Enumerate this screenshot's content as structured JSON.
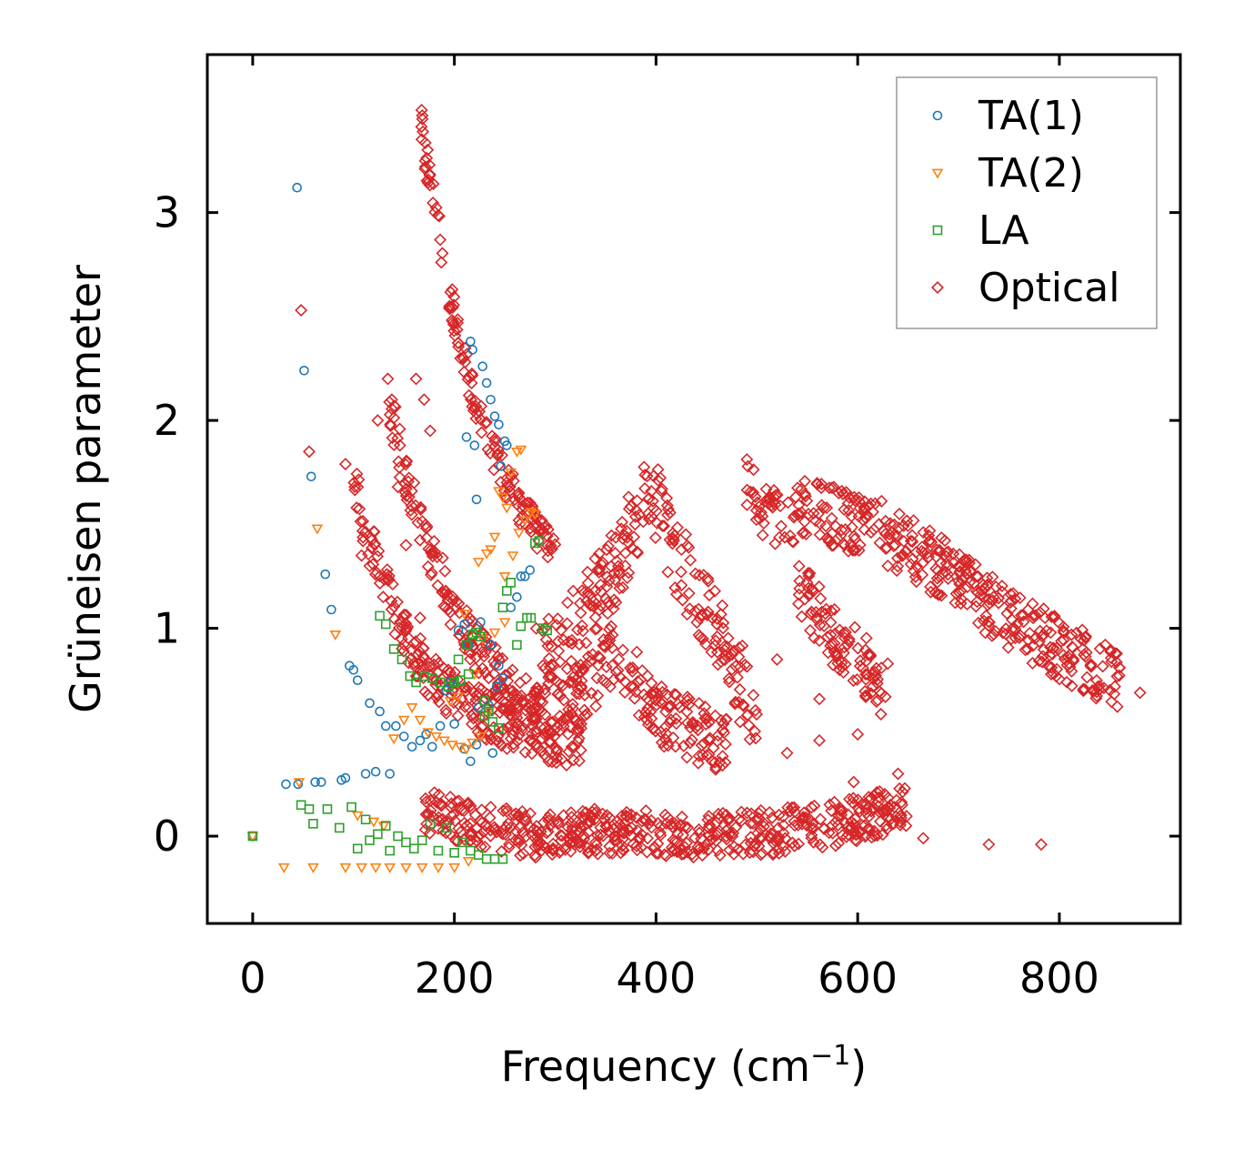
{
  "chart_data": {
    "type": "scatter",
    "title": "",
    "xlabel": "Frequency (cm",
    "xlabel_sup": "−1",
    "xlabel_close": ")",
    "ylabel": "Grüneisen parameter",
    "xlim": [
      -45,
      920
    ],
    "ylim": [
      -0.42,
      3.76
    ],
    "xticks": [
      0,
      200,
      400,
      600,
      800
    ],
    "yticks": [
      0,
      1,
      2,
      3
    ],
    "legend_position": "top-right",
    "series": [
      {
        "name": "TA(1)",
        "marker": "circle",
        "color": "#1f77b4",
        "points": [
          [
            0,
            0
          ],
          [
            33,
            0.25
          ],
          [
            45,
            0.25
          ],
          [
            44,
            3.12
          ],
          [
            51,
            2.24
          ],
          [
            58,
            1.73
          ],
          [
            62,
            0.26
          ],
          [
            68,
            0.26
          ],
          [
            72,
            1.26
          ],
          [
            78,
            1.09
          ],
          [
            88,
            0.27
          ],
          [
            92,
            0.28
          ],
          [
            96,
            0.82
          ],
          [
            100,
            0.8
          ],
          [
            104,
            0.75
          ],
          [
            112,
            0.3
          ],
          [
            116,
            0.64
          ],
          [
            122,
            0.31
          ],
          [
            126,
            0.6
          ],
          [
            132,
            0.53
          ],
          [
            136,
            0.3
          ],
          [
            142,
            0.53
          ],
          [
            150,
            0.48
          ],
          [
            158,
            0.43
          ],
          [
            166,
            0.46
          ],
          [
            172,
            0.49
          ],
          [
            178,
            0.43
          ],
          [
            186,
            0.53
          ],
          [
            192,
            0.7
          ],
          [
            196,
            0.74
          ],
          [
            200,
            0.54
          ],
          [
            204,
            0.99
          ],
          [
            210,
            1.02
          ],
          [
            212,
            1.92
          ],
          [
            216,
            2.38
          ],
          [
            218,
            2.34
          ],
          [
            220,
            1.88
          ],
          [
            222,
            1.62
          ],
          [
            224,
            0.62
          ],
          [
            228,
            2.26
          ],
          [
            232,
            2.18
          ],
          [
            234,
            0.63
          ],
          [
            236,
            2.1
          ],
          [
            238,
            0.4
          ],
          [
            240,
            2.02
          ],
          [
            242,
            0.72
          ],
          [
            244,
            1.98
          ],
          [
            246,
            1.78
          ],
          [
            248,
            0.76
          ],
          [
            250,
            1.9
          ],
          [
            252,
            1.88
          ],
          [
            256,
            1.1
          ],
          [
            262,
            1.15
          ],
          [
            266,
            1.25
          ],
          [
            270,
            1.25
          ],
          [
            275,
            1.28
          ],
          [
            214,
            0.92
          ],
          [
            226,
            1.03
          ],
          [
            236,
            0.92
          ],
          [
            244,
            0.82
          ],
          [
            210,
            0.42
          ],
          [
            216,
            0.36
          ],
          [
            222,
            0.44
          ]
        ]
      },
      {
        "name": "TA(2)",
        "marker": "triangle-down",
        "color": "#ff7f0e",
        "points": [
          [
            0,
            0
          ],
          [
            31,
            -0.15
          ],
          [
            46,
            0.26
          ],
          [
            60,
            -0.15
          ],
          [
            64,
            1.48
          ],
          [
            82,
            0.97
          ],
          [
            92,
            -0.15
          ],
          [
            108,
            -0.15
          ],
          [
            122,
            -0.15
          ],
          [
            136,
            -0.15
          ],
          [
            152,
            -0.15
          ],
          [
            168,
            -0.15
          ],
          [
            184,
            -0.15
          ],
          [
            200,
            -0.15
          ],
          [
            214,
            -0.12
          ],
          [
            140,
            0.47
          ],
          [
            150,
            0.56
          ],
          [
            158,
            0.62
          ],
          [
            166,
            0.56
          ],
          [
            174,
            0.5
          ],
          [
            182,
            0.48
          ],
          [
            190,
            0.46
          ],
          [
            198,
            0.44
          ],
          [
            206,
            0.43
          ],
          [
            212,
            0.42
          ],
          [
            218,
            0.45
          ],
          [
            226,
            0.48
          ],
          [
            234,
            0.6
          ],
          [
            240,
            1.44
          ],
          [
            244,
            1.66
          ],
          [
            248,
            1.63
          ],
          [
            252,
            1.58
          ],
          [
            256,
            1.75
          ],
          [
            262,
            1.85
          ],
          [
            266,
            1.86
          ],
          [
            270,
            1.52
          ],
          [
            276,
            1.56
          ],
          [
            280,
            1.55
          ],
          [
            210,
            1.07
          ],
          [
            224,
            1.32
          ],
          [
            232,
            1.36
          ],
          [
            236,
            1.38
          ],
          [
            250,
            1.25
          ],
          [
            258,
            1.35
          ],
          [
            264,
            1.46
          ],
          [
            196,
            0.65
          ],
          [
            204,
            0.67
          ],
          [
            220,
            0.78
          ],
          [
            228,
            0.95
          ],
          [
            240,
            0.98
          ],
          [
            250,
            1.03
          ],
          [
            120,
            0.07
          ],
          [
            130,
            0.05
          ],
          [
            104,
            0.1
          ]
        ]
      },
      {
        "name": "LA",
        "marker": "square",
        "color": "#2ca02c",
        "points": [
          [
            0,
            0
          ],
          [
            48,
            0.15
          ],
          [
            56,
            0.13
          ],
          [
            60,
            0.06
          ],
          [
            74,
            0.13
          ],
          [
            86,
            0.04
          ],
          [
            98,
            0.14
          ],
          [
            104,
            -0.06
          ],
          [
            112,
            0.08
          ],
          [
            116,
            -0.02
          ],
          [
            124,
            0.01
          ],
          [
            132,
            0.05
          ],
          [
            136,
            -0.07
          ],
          [
            144,
            0.0
          ],
          [
            152,
            -0.03
          ],
          [
            160,
            -0.06
          ],
          [
            168,
            -0.02
          ],
          [
            176,
            0.06
          ],
          [
            184,
            -0.07
          ],
          [
            192,
            0.04
          ],
          [
            200,
            -0.08
          ],
          [
            208,
            -0.03
          ],
          [
            216,
            -0.07
          ],
          [
            224,
            -0.09
          ],
          [
            232,
            -0.11
          ],
          [
            240,
            -0.11
          ],
          [
            248,
            -0.11
          ],
          [
            126,
            1.06
          ],
          [
            132,
            1.02
          ],
          [
            140,
            0.9
          ],
          [
            148,
            0.85
          ],
          [
            156,
            0.77
          ],
          [
            162,
            0.74
          ],
          [
            170,
            0.77
          ],
          [
            178,
            0.76
          ],
          [
            186,
            0.74
          ],
          [
            194,
            0.72
          ],
          [
            200,
            0.74
          ],
          [
            206,
            0.75
          ],
          [
            212,
            0.92
          ],
          [
            218,
            0.97
          ],
          [
            222,
            0.98
          ],
          [
            226,
            0.96
          ],
          [
            230,
            0.58
          ],
          [
            234,
            0.6
          ],
          [
            238,
            0.55
          ],
          [
            244,
            0.52
          ],
          [
            248,
            1.1
          ],
          [
            252,
            1.18
          ],
          [
            256,
            1.22
          ],
          [
            262,
            0.92
          ],
          [
            266,
            1.01
          ],
          [
            272,
            1.05
          ],
          [
            276,
            1.05
          ],
          [
            280,
            1.41
          ],
          [
            284,
            1.42
          ],
          [
            288,
            1.0
          ],
          [
            292,
            0.99
          ],
          [
            204,
            0.85
          ],
          [
            214,
            0.78
          ],
          [
            230,
            0.65
          ]
        ]
      },
      {
        "name": "Optical",
        "marker": "diamond",
        "color": "#d62728",
        "bands": [
          {
            "x": [
              170,
              185,
              200,
              215,
              235,
              260,
              290,
              330,
              380,
              440,
              520,
              600,
              650
            ],
            "center": [
              0.12,
              0.1,
              0.08,
              0.06,
              0.04,
              0.02,
              0.0,
              0.02,
              0.03,
              0.0,
              0.02,
              0.08,
              0.14
            ],
            "spread": 0.11
          },
          {
            "x": [
              165,
              170,
              180,
              190,
              200,
              215,
              230,
              250,
              270,
              300
            ],
            "center": [
              3.55,
              3.3,
              3.05,
              2.75,
              2.5,
              2.2,
              1.95,
              1.72,
              1.55,
              1.35
            ],
            "spread": 0.09
          },
          {
            "x": [
              135,
              150,
              170,
              190,
              210,
              235,
              260,
              290
            ],
            "center": [
              2.1,
              1.75,
              1.45,
              1.2,
              1.0,
              0.82,
              0.68,
              0.6
            ],
            "spread": 0.12
          },
          {
            "x": [
              100,
              120,
              140,
              160,
              180,
              205,
              230,
              260,
              290,
              330
            ],
            "center": [
              1.7,
              1.35,
              1.08,
              0.88,
              0.75,
              0.66,
              0.58,
              0.52,
              0.47,
              0.42
            ],
            "spread": 0.12
          },
          {
            "x": [
              280,
              320,
              360,
              390,
              400,
              430,
              470,
              500
            ],
            "center": [
              0.8,
              1.0,
              1.3,
              1.62,
              1.6,
              1.25,
              0.9,
              0.55
            ],
            "spread": 0.2
          },
          {
            "x": [
              300,
              330,
              360,
              400,
              440,
              470
            ],
            "center": [
              0.55,
              0.7,
              0.9,
              0.6,
              0.5,
              0.45
            ],
            "spread": 0.15
          },
          {
            "x": [
              490,
              520,
              550,
              580,
              610,
              640,
              680,
              720,
              760,
              800,
              840,
              860
            ],
            "center": [
              1.7,
              1.5,
              1.6,
              1.52,
              1.5,
              1.42,
              1.3,
              1.15,
              1.02,
              0.9,
              0.8,
              0.75
            ],
            "spread": 0.15
          },
          {
            "x": [
              540,
              570,
              600,
              630
            ],
            "center": [
              1.2,
              1.0,
              0.85,
              0.7
            ],
            "spread": 0.15
          }
        ],
        "points": [
          [
            48,
            2.53
          ],
          [
            56,
            1.85
          ],
          [
            92,
            1.79
          ],
          [
            108,
            1.35
          ],
          [
            116,
            1.3
          ],
          [
            124,
            2.0
          ],
          [
            134,
            2.2
          ],
          [
            138,
            2.1
          ],
          [
            146,
            1.88
          ],
          [
            162,
            2.2
          ],
          [
            170,
            2.1
          ],
          [
            176,
            1.95
          ],
          [
            144,
            1.68
          ],
          [
            152,
            1.4
          ],
          [
            166,
            1.05
          ],
          [
            880,
            0.69
          ],
          [
            855,
            0.72
          ],
          [
            730,
            -0.04
          ],
          [
            782,
            -0.04
          ],
          [
            665,
            -0.01
          ],
          [
            648,
            0.05
          ],
          [
            530,
            0.4
          ],
          [
            562,
            0.66
          ],
          [
            562,
            0.46
          ],
          [
            582,
            0.8
          ],
          [
            600,
            0.49
          ],
          [
            596,
            0.26
          ],
          [
            640,
            0.3
          ],
          [
            608,
            0.67
          ],
          [
            520,
            0.85
          ]
        ]
      }
    ]
  }
}
